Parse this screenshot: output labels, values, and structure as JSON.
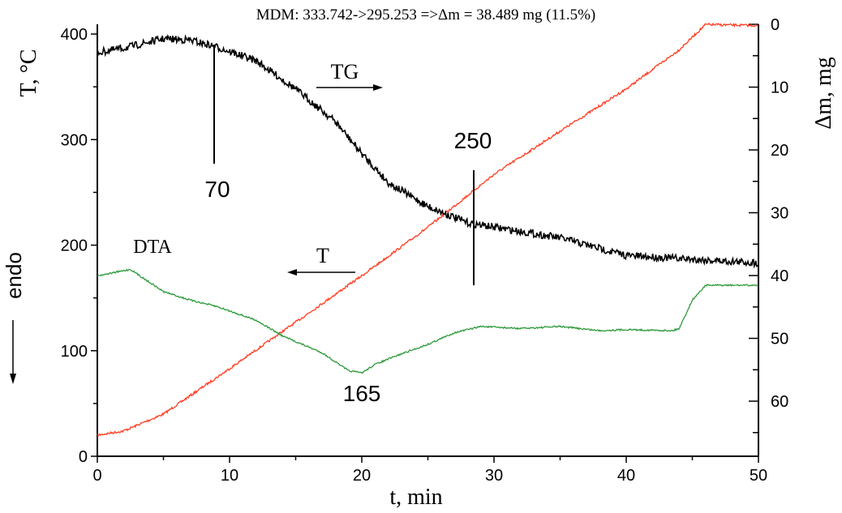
{
  "chart_data": {
    "type": "line",
    "title": "MDM: 333.742->295.253 =>Δm = 38.489 mg (11.5%)",
    "xlabel": "t, min",
    "ylabel_left": "T, °C",
    "ylabel_right": "Δm, mg",
    "xlim": [
      0,
      50
    ],
    "ylim_left": [
      0,
      410
    ],
    "ylim_right_inverted": [
      0,
      68.8
    ],
    "x_ticks": [
      "0",
      "10",
      "20",
      "30",
      "40",
      "50"
    ],
    "y_left_ticks": [
      "0",
      "100",
      "200",
      "300",
      "400"
    ],
    "y_right_ticks": [
      "0",
      "10",
      "20",
      "30",
      "40",
      "50",
      "60"
    ],
    "grid": false,
    "series": [
      {
        "name": "T",
        "axis": "left",
        "color": "#ff3b1f",
        "x": [
          0,
          2,
          5,
          10,
          15,
          20,
          25,
          28.5,
          30,
          35,
          40,
          44,
          46,
          50
        ],
        "y": [
          20,
          24,
          40,
          83,
          127,
          171,
          217,
          252,
          267,
          308,
          348,
          385,
          409,
          408
        ]
      },
      {
        "name": "TG",
        "axis": "right",
        "color": "#000000",
        "x": [
          0,
          2,
          5,
          7,
          9,
          12,
          15,
          18,
          20,
          22,
          25,
          28,
          30,
          35,
          40,
          45,
          50
        ],
        "y": [
          4.5,
          3.8,
          2.3,
          2.5,
          3.6,
          5.8,
          10.3,
          15.5,
          20.6,
          25.2,
          29,
          31.6,
          32.3,
          34,
          36.8,
          37.4,
          38
        ]
      },
      {
        "name": "DTA",
        "axis": "left",
        "color": "#2e9a3a",
        "x": [
          0,
          2.5,
          5,
          7,
          9,
          12,
          14,
          17,
          19,
          20,
          21,
          23,
          25,
          27,
          29,
          32,
          35,
          38,
          40,
          43.5,
          44,
          45,
          46,
          50
        ],
        "y": [
          171,
          177,
          156,
          148,
          142,
          129,
          114,
          98,
          81,
          79,
          87,
          97,
          106,
          117,
          123,
          121,
          123,
          119,
          120,
          119,
          121,
          148,
          162,
          162
        ]
      }
    ],
    "annotations": {
      "tg_label": "TG",
      "t_label": "T",
      "dta_label": "DTA",
      "endo_label": "endo",
      "peak_70": "70",
      "peak_250": "250",
      "peak_165": "165"
    }
  }
}
